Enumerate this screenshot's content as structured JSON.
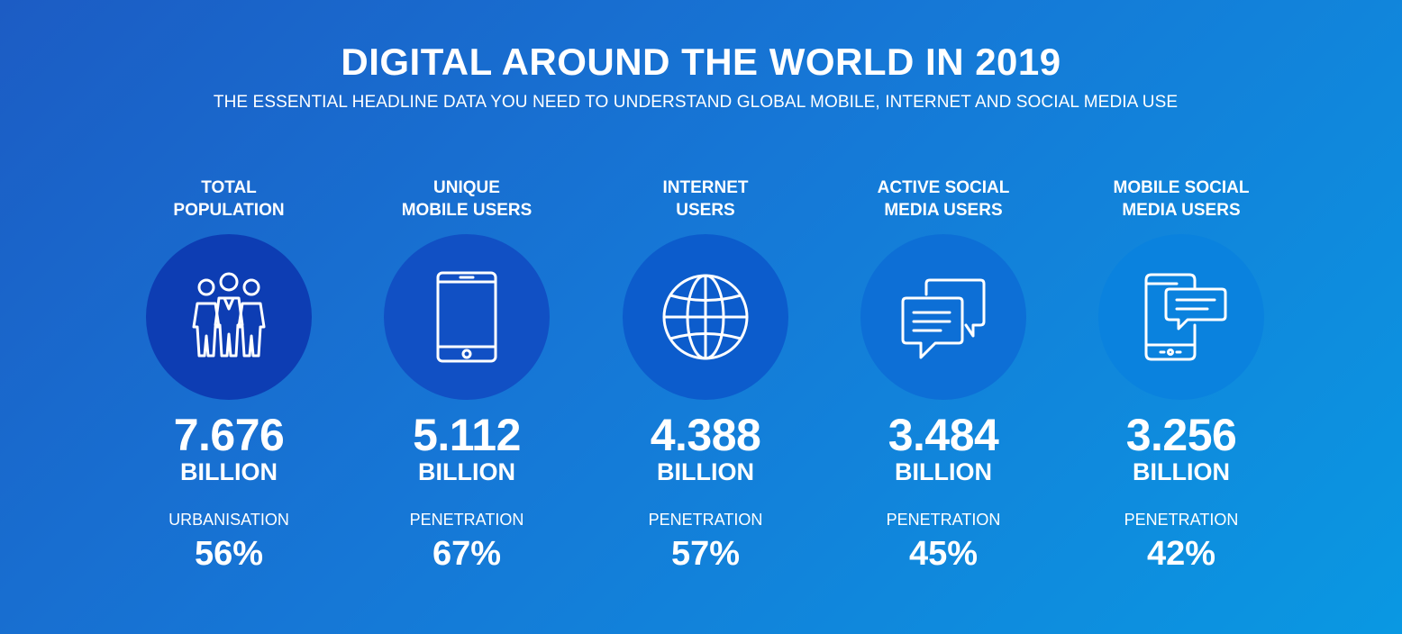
{
  "header": {
    "title": "DIGITAL AROUND THE WORLD IN 2019",
    "subtitle": "THE ESSENTIAL HEADLINE DATA YOU NEED TO UNDERSTAND GLOBAL MOBILE, INTERNET AND SOCIAL MEDIA USE"
  },
  "stats": [
    {
      "label": "TOTAL\nPOPULATION",
      "icon": "people-icon",
      "value": "7.676",
      "unit": "BILLION",
      "metric_label": "URBANISATION",
      "metric_value": "56%",
      "circle_color": "#0d3db3"
    },
    {
      "label": "UNIQUE\nMOBILE USERS",
      "icon": "mobile-phone-icon",
      "value": "5.112",
      "unit": "BILLION",
      "metric_label": "PENETRATION",
      "metric_value": "67%",
      "circle_color": "#1150c4"
    },
    {
      "label": "INTERNET\nUSERS",
      "icon": "globe-icon",
      "value": "4.388",
      "unit": "BILLION",
      "metric_label": "PENETRATION",
      "metric_value": "57%",
      "circle_color": "#0c5ccc"
    },
    {
      "label": "ACTIVE SOCIAL\nMEDIA USERS",
      "icon": "chat-bubbles-icon",
      "value": "3.484",
      "unit": "BILLION",
      "metric_label": "PENETRATION",
      "metric_value": "45%",
      "circle_color": "#0d6fd6"
    },
    {
      "label": "MOBILE SOCIAL\nMEDIA USERS",
      "icon": "mobile-chat-icon",
      "value": "3.256",
      "unit": "BILLION",
      "metric_label": "PENETRATION",
      "metric_value": "42%",
      "circle_color": "#0a82de"
    }
  ]
}
